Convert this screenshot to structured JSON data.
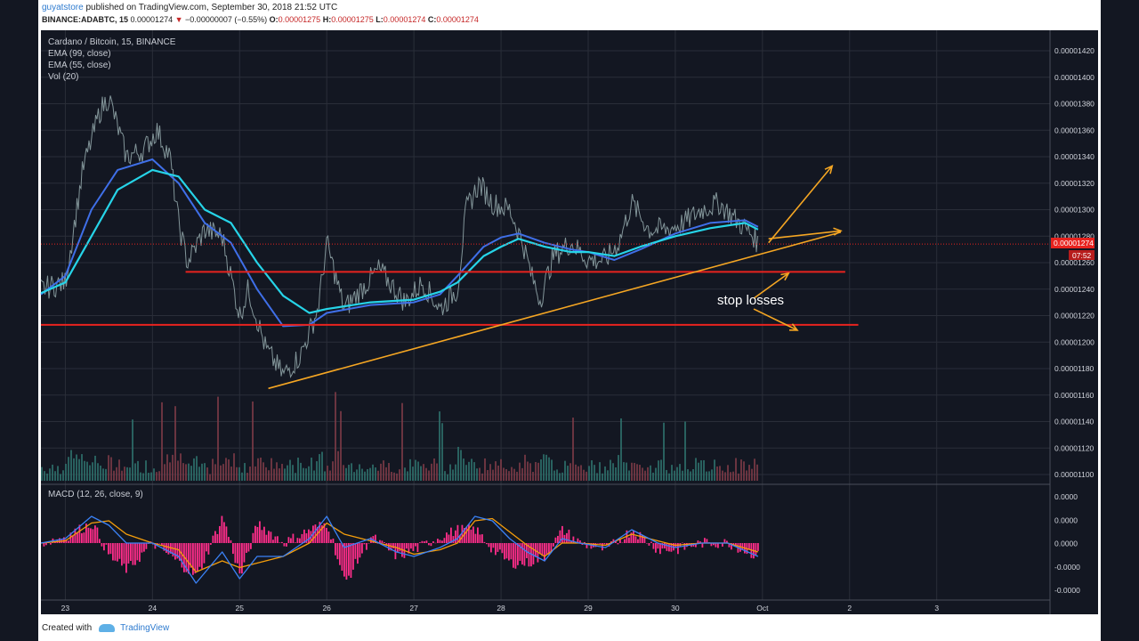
{
  "header": {
    "user": "guyatstore",
    "published": "published on TradingView.com, September 30, 2018 21:52 UTC",
    "symbol": "BINANCE:ADABTC, 15",
    "last": "0.00001274",
    "change": "−0.00000007 (−0.55%)",
    "o_label": "O:",
    "o": "0.00001275",
    "h_label": "H:",
    "h": "0.00001275",
    "l_label": "L:",
    "l": "0.00001274",
    "c_label": "C:",
    "c": "0.00001274"
  },
  "legend": {
    "title": "Cardano / Bitcoin, 15, BINANCE",
    "ema99": "EMA (99, close)",
    "ema55": "EMA (55, close)",
    "vol": "Vol (20)",
    "macd": "MACD (12, 26, close, 9)"
  },
  "annotation": "stop losses",
  "price_tag": {
    "value": "0.00001274",
    "countdown": "07:52"
  },
  "footer": {
    "created": "Created with",
    "brand": "TradingView"
  },
  "colors": {
    "bg": "#131722",
    "ema99": "#3f6fe8",
    "ema55": "#26d4e8",
    "support": "#e8231f",
    "trend": "#f5a623",
    "macd_line": "#3b82f6",
    "signal_line": "#f59e0b",
    "hist": "#ff2d8a"
  },
  "chart_data": {
    "type": "line",
    "x_ticks": [
      "23",
      "24",
      "25",
      "26",
      "27",
      "28",
      "29",
      "30",
      "Oct",
      "2",
      "3"
    ],
    "y_ticks": [
      "0.00001420",
      "0.00001400",
      "0.00001380",
      "0.00001360",
      "0.00001340",
      "0.00001320",
      "0.00001300",
      "0.00001280",
      "0.00001260",
      "0.00001240",
      "0.00001220",
      "0.00001200",
      "0.00001180",
      "0.00001160",
      "0.00001140",
      "0.00001120",
      "0.00001100"
    ],
    "ylim": [
      1.1e-05,
      1.42e-05
    ],
    "xlim": [
      22.72,
      34.3
    ],
    "price": {
      "x": [
        22.72,
        23.0,
        23.2,
        23.4,
        23.5,
        23.7,
        23.9,
        24.05,
        24.2,
        24.3,
        24.4,
        24.6,
        24.8,
        25.0,
        25.1,
        25.3,
        25.5,
        25.7,
        25.9,
        26.0,
        26.2,
        26.4,
        26.6,
        26.9,
        27.1,
        27.3,
        27.5,
        27.6,
        27.75,
        27.9,
        28.1,
        28.25,
        28.35,
        28.45,
        28.6,
        28.8,
        29.0,
        29.2,
        29.35,
        29.5,
        29.7,
        29.9,
        30.1,
        30.3,
        30.5,
        30.7,
        30.9,
        30.95
      ],
      "y": [
        1.24e-05,
        1.245e-05,
        1.33e-05,
        1.375e-05,
        1.385e-05,
        1.34e-05,
        1.345e-05,
        1.36e-05,
        1.34e-05,
        1.29e-05,
        1.26e-05,
        1.285e-05,
        1.28e-05,
        1.22e-05,
        1.24e-05,
        1.195e-05,
        1.175e-05,
        1.19e-05,
        1.225e-05,
        1.275e-05,
        1.225e-05,
        1.24e-05,
        1.255e-05,
        1.23e-05,
        1.245e-05,
        1.225e-05,
        1.24e-05,
        1.3e-05,
        1.32e-05,
        1.305e-05,
        1.3e-05,
        1.275e-05,
        1.25e-05,
        1.232e-05,
        1.265e-05,
        1.275e-05,
        1.262e-05,
        1.262e-05,
        1.275e-05,
        1.305e-05,
        1.285e-05,
        1.285e-05,
        1.29e-05,
        1.3e-05,
        1.305e-05,
        1.292e-05,
        1.28e-05,
        1.274e-05
      ]
    },
    "ema55": {
      "x": [
        22.72,
        23.0,
        23.3,
        23.6,
        24.0,
        24.3,
        24.6,
        24.9,
        25.2,
        25.5,
        25.8,
        26.0,
        26.5,
        27.0,
        27.3,
        27.5,
        27.8,
        28.0,
        28.2,
        28.5,
        28.8,
        29.0,
        29.3,
        29.6,
        30.0,
        30.4,
        30.8,
        30.95
      ],
      "y": [
        1.237e-05,
        1.245e-05,
        1.28e-05,
        1.315e-05,
        1.33e-05,
        1.325e-05,
        1.3e-05,
        1.29e-05,
        1.26e-05,
        1.235e-05,
        1.222e-05,
        1.225e-05,
        1.23e-05,
        1.232e-05,
        1.238e-05,
        1.245e-05,
        1.265e-05,
        1.272e-05,
        1.278e-05,
        1.272e-05,
        1.268e-05,
        1.268e-05,
        1.265e-05,
        1.272e-05,
        1.28e-05,
        1.286e-05,
        1.29e-05,
        1.285e-05
      ]
    },
    "ema99": {
      "x": [
        22.72,
        23.0,
        23.3,
        23.6,
        24.0,
        24.3,
        24.6,
        24.9,
        25.2,
        25.5,
        25.8,
        26.0,
        26.5,
        27.0,
        27.3,
        27.5,
        27.8,
        28.0,
        28.2,
        28.5,
        28.8,
        29.0,
        29.3,
        29.6,
        30.0,
        30.4,
        30.8,
        30.95
      ],
      "y": [
        1.236e-05,
        1.25e-05,
        1.3e-05,
        1.33e-05,
        1.338e-05,
        1.32e-05,
        1.29e-05,
        1.275e-05,
        1.24e-05,
        1.212e-05,
        1.213e-05,
        1.222e-05,
        1.228e-05,
        1.23e-05,
        1.236e-05,
        1.25e-05,
        1.272e-05,
        1.279e-05,
        1.282e-05,
        1.275e-05,
        1.27e-05,
        1.268e-05,
        1.262e-05,
        1.27e-05,
        1.282e-05,
        1.29e-05,
        1.292e-05,
        1.287e-05
      ]
    },
    "trendline": {
      "x": [
        25.33,
        31.9
      ],
      "y": [
        1.165e-05,
        1.283e-05
      ]
    },
    "support_upper": {
      "x": [
        24.38,
        31.95
      ],
      "y": [
        1.253e-05,
        1.253e-05
      ]
    },
    "support_lower": {
      "x": [
        22.72,
        32.1
      ],
      "y": [
        1.213e-05,
        1.213e-05
      ]
    },
    "arrows": [
      {
        "from": [
          31.07,
          1.275e-05
        ],
        "to": [
          31.8,
          1.333e-05
        ]
      },
      {
        "from": [
          31.07,
          1.278e-05
        ],
        "to": [
          31.9,
          1.284e-05
        ]
      },
      {
        "from": [
          30.9,
          1.233e-05
        ],
        "to": [
          31.3,
          1.252e-05
        ]
      },
      {
        "from": [
          30.9,
          1.225e-05
        ],
        "to": [
          31.4,
          1.209e-05
        ]
      }
    ],
    "macd": {
      "y_ticks": [
        "0.0000",
        "0.0000",
        "0.0000",
        "-0.0000",
        "-0.0000"
      ],
      "x": [
        22.72,
        23.0,
        23.3,
        23.5,
        23.7,
        24.0,
        24.3,
        24.5,
        24.8,
        25.0,
        25.2,
        25.5,
        25.8,
        26.0,
        26.2,
        26.5,
        26.8,
        27.0,
        27.3,
        27.5,
        27.7,
        27.9,
        28.1,
        28.3,
        28.5,
        28.7,
        28.9,
        29.2,
        29.5,
        29.8,
        30.0,
        30.3,
        30.6,
        30.95
      ],
      "line": [
        0.0,
        0.1,
        0.6,
        0.4,
        0.0,
        0.0,
        -0.3,
        -0.9,
        -0.2,
        -0.8,
        -0.3,
        -0.3,
        0.1,
        0.6,
        -0.1,
        0.1,
        -0.2,
        -0.3,
        -0.1,
        0.1,
        0.6,
        0.5,
        0.1,
        -0.2,
        -0.4,
        0.1,
        0.0,
        -0.1,
        0.3,
        0.0,
        -0.1,
        0.0,
        0.0,
        -0.3
      ],
      "signal": [
        0.0,
        0.05,
        0.45,
        0.5,
        0.2,
        0.0,
        -0.15,
        -0.65,
        -0.4,
        -0.55,
        -0.45,
        -0.3,
        0.0,
        0.45,
        0.2,
        0.05,
        -0.1,
        -0.25,
        -0.15,
        0.0,
        0.5,
        0.55,
        0.25,
        -0.05,
        -0.3,
        0.0,
        0.0,
        -0.05,
        0.2,
        0.05,
        -0.05,
        0.0,
        0.0,
        -0.2
      ],
      "ylim": [
        -1.1,
        1.1
      ]
    }
  }
}
